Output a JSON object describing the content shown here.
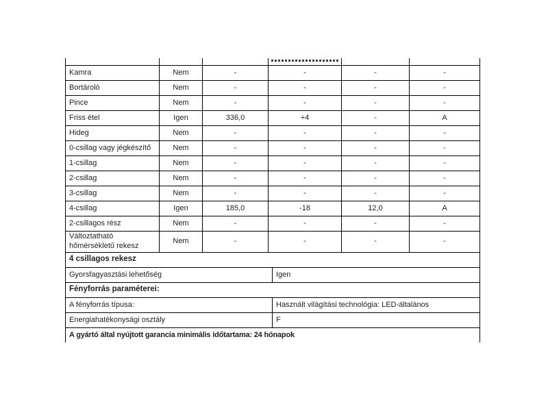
{
  "table": {
    "compartment_rows": [
      {
        "label": "Kamra",
        "present": "Nem",
        "volume": "-",
        "temperature": "-",
        "freezing_capacity": "-",
        "rating": "-"
      },
      {
        "label": "Bortároló",
        "present": "Nem",
        "volume": "-",
        "temperature": "-",
        "freezing_capacity": "-",
        "rating": "-"
      },
      {
        "label": "Pince",
        "present": "Nem",
        "volume": "-",
        "temperature": "-",
        "freezing_capacity": "-",
        "rating": "-"
      },
      {
        "label": "Friss étel",
        "present": "Igen",
        "volume": "336,0",
        "temperature": "+4",
        "freezing_capacity": "-",
        "rating": "A"
      },
      {
        "label": "Hideg",
        "present": "Nem",
        "volume": "-",
        "temperature": "-",
        "freezing_capacity": "-",
        "rating": "-"
      },
      {
        "label": "0-csillag vagy jégkészítő",
        "present": "Nem",
        "volume": "-",
        "temperature": "-",
        "freezing_capacity": "-",
        "rating": "-"
      },
      {
        "label": "1-csillag",
        "present": "Nem",
        "volume": "-",
        "temperature": "-",
        "freezing_capacity": "-",
        "rating": "-"
      },
      {
        "label": "2-csillag",
        "present": "Nem",
        "volume": "-",
        "temperature": "-",
        "freezing_capacity": "-",
        "rating": "-"
      },
      {
        "label": "3-csillag",
        "present": "Nem",
        "volume": "-",
        "temperature": "-",
        "freezing_capacity": "-",
        "rating": "-"
      },
      {
        "label": "4-csillag",
        "present": "Igen",
        "volume": "185,0",
        "temperature": "-18",
        "freezing_capacity": "12,0",
        "rating": "A"
      },
      {
        "label": "2-csillagos rész",
        "present": "Nem",
        "volume": "-",
        "temperature": "-",
        "freezing_capacity": "-",
        "rating": "-"
      },
      {
        "label": "Változtatható hőmérsékletű rekesz",
        "present": "Nem",
        "volume": "-",
        "temperature": "-",
        "freezing_capacity": "-",
        "rating": "-"
      }
    ],
    "four_star_section_header": "4 csillagos rekesz",
    "quick_freeze": {
      "label": "Gyorsfagyasztási lehetőség",
      "value": "Igen"
    },
    "light_section_header": "Fényforrás paraméterei:",
    "light_source_type": {
      "label": "A fényforrás típusa:",
      "value": "Használt világítási technológia: LED-általános"
    },
    "energy_class": {
      "label": "Energiahatékonysági osztály",
      "value": "F"
    },
    "warranty_line": "A gyártó által nyújtott garancia minimális időtartama:  24 hónapok"
  }
}
